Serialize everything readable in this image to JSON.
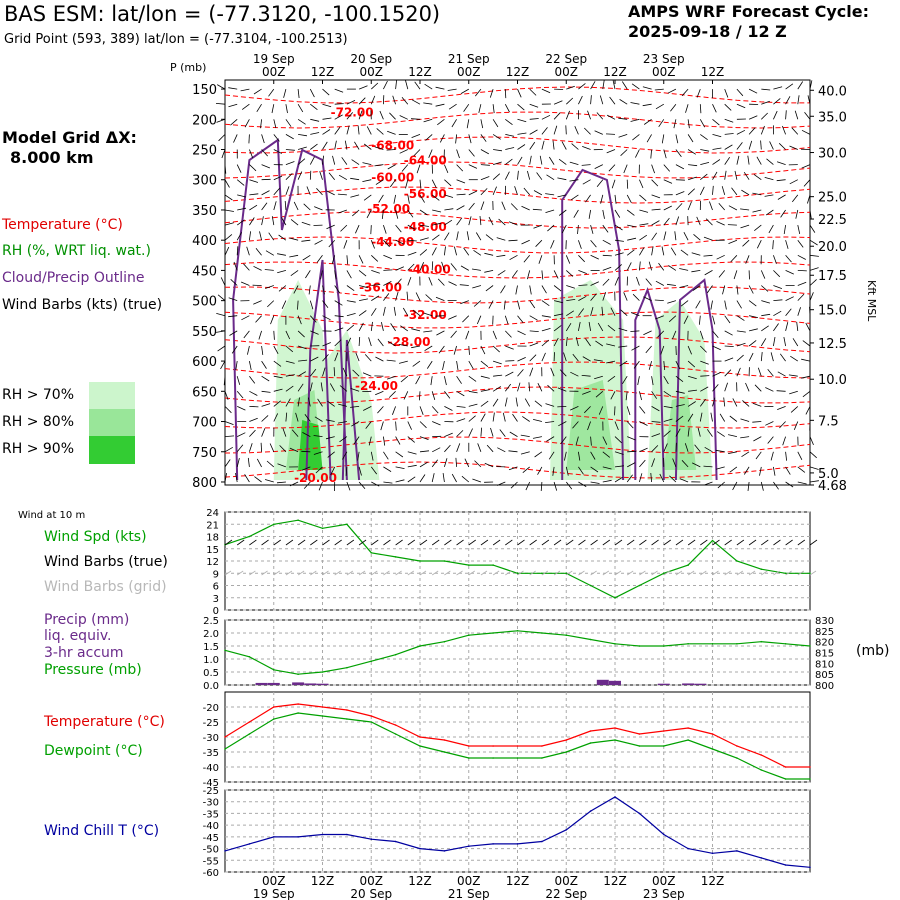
{
  "header": {
    "title": "BAS ESM:  lat/lon = (-77.3120, -100.1520)",
    "subtitle": "Grid Point (593, 389) lat/lon = (-77.3104, -100.2513)",
    "cycle_line1": "AMPS WRF Forecast Cycle:",
    "cycle_line2": "2025-09-18 / 12  Z"
  },
  "legend": {
    "model_grid_label": "Model Grid ΔX:",
    "model_grid_value": "8.000 km",
    "temperature": "Temperature (°C)",
    "rh": "RH (%, WRT liq. wat.)",
    "cloud": "Cloud/Precip Outline",
    "wind": "Wind Barbs (kts) (true)",
    "rh70": "RH > 70%",
    "rh80": "RH > 80%",
    "rh90": "RH > 90%"
  },
  "colors": {
    "temp": "#ff0000",
    "rh": "#00a000",
    "cloud": "#6a2a8a",
    "rh70": "#ccf5cc",
    "rh80": "#99e699",
    "rh90": "#33cc33",
    "wind_chill": "#0000a0",
    "precip": "#6a2a8a",
    "grid_barb": "#b0b0b0"
  },
  "chart_data": [
    {
      "type": "cross-section",
      "name": "upper-profile",
      "ylabel": "P (mb)",
      "y2label": "Kft MSL",
      "pressure_ticks": [
        150,
        200,
        250,
        300,
        350,
        400,
        450,
        500,
        550,
        600,
        650,
        700,
        750,
        800
      ],
      "kft_ticks": [
        "40.0",
        "35.0",
        "30.0",
        "25.0",
        "22.5",
        "20.0",
        "17.5",
        "15.0",
        "12.5",
        "10.0",
        "7.5",
        "5.0",
        "4.68"
      ],
      "kft_positions_mb": [
        152,
        195,
        255,
        328,
        365,
        410,
        458,
        515,
        570,
        630,
        698,
        785,
        805
      ],
      "time_top": [
        {
          "t": "00Z",
          "d": "19 Sep"
        },
        {
          "t": "12Z",
          "d": ""
        },
        {
          "t": "00Z",
          "d": "20 Sep"
        },
        {
          "t": "12Z",
          "d": ""
        },
        {
          "t": "00Z",
          "d": "21 Sep"
        },
        {
          "t": "12Z",
          "d": ""
        },
        {
          "t": "00Z",
          "d": "22 Sep"
        },
        {
          "t": "12Z",
          "d": ""
        },
        {
          "t": "00Z",
          "d": "23 Sep"
        },
        {
          "t": "12Z",
          "d": ""
        }
      ],
      "temp_labels": [
        {
          "label": "-72.00",
          "hour": 26,
          "p": 195
        },
        {
          "label": "-68.00",
          "hour": 36,
          "p": 250
        },
        {
          "label": "-64.00",
          "hour": 44,
          "p": 275
        },
        {
          "label": "-60.00",
          "hour": 36,
          "p": 303
        },
        {
          "label": "-56.00",
          "hour": 44,
          "p": 330
        },
        {
          "label": "-52.00",
          "hour": 35,
          "p": 355
        },
        {
          "label": "-48.00",
          "hour": 44,
          "p": 385
        },
        {
          "label": "-44.00",
          "hour": 36,
          "p": 410
        },
        {
          "label": "-40.00",
          "hour": 45,
          "p": 455
        },
        {
          "label": "-36.00",
          "hour": 33,
          "p": 485
        },
        {
          "label": "-32.00",
          "hour": 44,
          "p": 530
        },
        {
          "label": "-28.00",
          "hour": 40,
          "p": 575
        },
        {
          "label": "-24.00",
          "hour": 32,
          "p": 648
        },
        {
          "label": "-20.00",
          "hour": 17,
          "p": 800
        }
      ]
    },
    {
      "type": "line",
      "name": "wind-10m",
      "title": "Wind at 10 m",
      "series_label": "Wind Spd (kts)",
      "barb_true_label": "Wind Barbs (true)",
      "barb_grid_label": "Wind Barbs (grid)",
      "ylim": [
        0,
        24
      ],
      "yticks": [
        0,
        3,
        6,
        9,
        12,
        15,
        18,
        21,
        24
      ],
      "x": [
        0,
        6,
        12,
        18,
        24,
        30,
        36,
        42,
        48,
        54,
        60,
        66,
        72,
        78,
        84,
        90,
        96,
        102,
        108,
        114,
        120,
        126,
        132,
        138,
        144
      ],
      "values": [
        16,
        18,
        21,
        22,
        20,
        21,
        14,
        13,
        12,
        12,
        11,
        11,
        9,
        9,
        9,
        6,
        3,
        6,
        9,
        11,
        17,
        12,
        10,
        9,
        9
      ]
    },
    {
      "type": "line",
      "name": "precip-pressure",
      "precip_label1": "Precip (mm)",
      "precip_label2": "liq. equiv.",
      "precip_label3": "3-hr accum",
      "pressure_label": "Pressure (mb)",
      "y2_unit": "(mb)",
      "ylim": [
        0,
        2.5
      ],
      "yticks": [
        "0.0",
        "0.5",
        "1.0",
        "1.5",
        "2.0",
        "2.5"
      ],
      "y2lim": [
        800,
        830
      ],
      "y2ticks": [
        "800",
        "805",
        "810",
        "815",
        "820",
        "825",
        "830"
      ],
      "x": [
        0,
        6,
        12,
        18,
        24,
        30,
        36,
        42,
        48,
        54,
        60,
        66,
        72,
        78,
        84,
        90,
        96,
        102,
        108,
        114,
        120,
        126,
        132,
        138,
        144
      ],
      "pressure": [
        816,
        813,
        807,
        805,
        806,
        808,
        811,
        814,
        818,
        820,
        823,
        824,
        825,
        824,
        823,
        821,
        819,
        818,
        818,
        819,
        819,
        819,
        820,
        819,
        818
      ],
      "precip_bars": [
        {
          "hour": 9,
          "v": 0.08
        },
        {
          "hour": 12,
          "v": 0.08
        },
        {
          "hour": 18,
          "v": 0.1
        },
        {
          "hour": 21,
          "v": 0.06
        },
        {
          "hour": 24,
          "v": 0.05
        },
        {
          "hour": 93,
          "v": 0.2
        },
        {
          "hour": 96,
          "v": 0.16
        },
        {
          "hour": 108,
          "v": 0.05
        },
        {
          "hour": 114,
          "v": 0.06
        },
        {
          "hour": 117,
          "v": 0.05
        }
      ]
    },
    {
      "type": "line",
      "name": "temp-dewpoint",
      "series": [
        {
          "name": "Temperature (°C)",
          "values": [
            -30,
            -25,
            -20,
            -19,
            -20,
            -21,
            -23,
            -26,
            -30,
            -31,
            -33,
            -33,
            -33,
            -33,
            -31,
            -28,
            -27,
            -29,
            -28,
            -27,
            -29,
            -33,
            -36,
            -40,
            -40
          ]
        },
        {
          "name": "Dewpoint (°C)",
          "values": [
            -34,
            -29,
            -24,
            -22,
            -23,
            -24,
            -25,
            -29,
            -33,
            -35,
            -37,
            -37,
            -37,
            -37,
            -35,
            -32,
            -31,
            -33,
            -33,
            -31,
            -34,
            -37,
            -41,
            -44,
            -44
          ]
        }
      ],
      "ylim": [
        -45,
        -15
      ],
      "yticks": [
        -45,
        -40,
        -35,
        -30,
        -25,
        -20
      ],
      "x": [
        0,
        6,
        12,
        18,
        24,
        30,
        36,
        42,
        48,
        54,
        60,
        66,
        72,
        78,
        84,
        90,
        96,
        102,
        108,
        114,
        120,
        126,
        132,
        138,
        144
      ]
    },
    {
      "type": "line",
      "name": "wind-chill",
      "series_label": "Wind Chill T (°C)",
      "ylim": [
        -60,
        -25
      ],
      "yticks": [
        -60,
        -55,
        -50,
        -45,
        -40,
        -35,
        -30,
        -25
      ],
      "x": [
        0,
        6,
        12,
        18,
        24,
        30,
        36,
        42,
        48,
        54,
        60,
        66,
        72,
        78,
        84,
        90,
        96,
        102,
        108,
        114,
        120,
        126,
        132,
        138,
        144
      ],
      "values": [
        -51,
        -48,
        -45,
        -45,
        -44,
        -44,
        -46,
        -47,
        -50,
        -51,
        -49,
        -48,
        -48,
        -47,
        -42,
        -34,
        -28,
        -35,
        -44,
        -50,
        -52,
        -51,
        -54,
        -57,
        -58
      ]
    }
  ],
  "time_axis_bottom": [
    {
      "t": "00Z",
      "d": "19 Sep"
    },
    {
      "t": "12Z",
      "d": ""
    },
    {
      "t": "00Z",
      "d": "20 Sep"
    },
    {
      "t": "12Z",
      "d": ""
    },
    {
      "t": "00Z",
      "d": "21 Sep"
    },
    {
      "t": "12Z",
      "d": ""
    },
    {
      "t": "00Z",
      "d": "22 Sep"
    },
    {
      "t": "12Z",
      "d": ""
    },
    {
      "t": "00Z",
      "d": "23 Sep"
    },
    {
      "t": "12Z",
      "d": ""
    }
  ]
}
